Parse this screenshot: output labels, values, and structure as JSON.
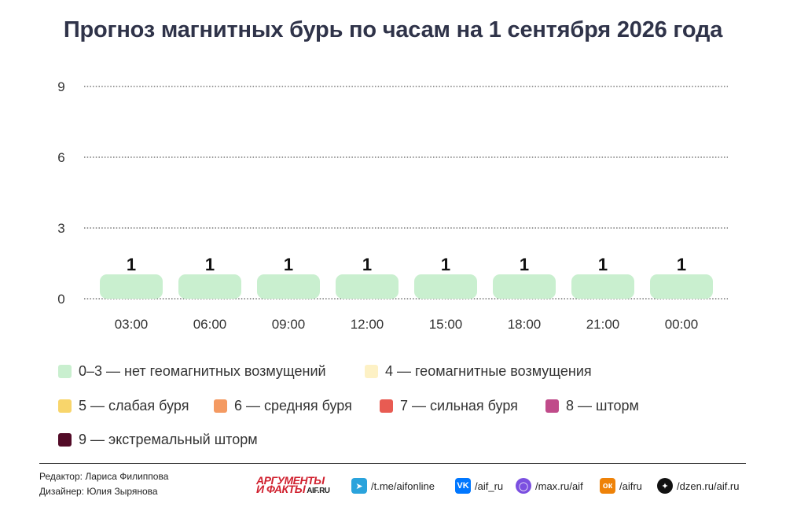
{
  "title": "Прогноз магнитных бурь по часам на 1 сентября 2026 года",
  "chart_data": {
    "type": "bar",
    "categories": [
      "03:00",
      "06:00",
      "09:00",
      "12:00",
      "15:00",
      "18:00",
      "21:00",
      "00:00"
    ],
    "values": [
      1,
      1,
      1,
      1,
      1,
      1,
      1,
      1
    ],
    "value_labels": [
      "1",
      "1",
      "1",
      "1",
      "1",
      "1",
      "1",
      "1"
    ],
    "ylim": [
      0,
      9
    ],
    "yticks": [
      0,
      3,
      6,
      9
    ],
    "ytick_labels": [
      "0",
      "3",
      "6",
      "9"
    ],
    "grid": true,
    "bar_color": "#c9efcf",
    "title": "Прогноз магнитных бурь по часам на 1 сентября 2026 года",
    "xlabel": "",
    "ylabel": ""
  },
  "legend": [
    {
      "label": "0–3 — нет геомагнитных возмущений",
      "color": "#c9efcf"
    },
    {
      "label": "4 — геомагнитные возмущения",
      "color": "#fdf1c5"
    },
    {
      "label": "5 — слабая буря",
      "color": "#f8d56b"
    },
    {
      "label": "6 — средняя буря",
      "color": "#f49a62"
    },
    {
      "label": "7 — сильная буря",
      "color": "#e85b52"
    },
    {
      "label": "8 — шторм",
      "color": "#c04b8a"
    },
    {
      "label": "9 — экстремальный шторм",
      "color": "#520b27"
    }
  ],
  "footer": {
    "editor": "Редактор: Лариса Филиппова",
    "designer": "Дизайнер: Юлия Зырянова",
    "logo_line1": "АРГУМЕНТЫ",
    "logo_line2": "И ФАКТЫ",
    "logo_site": "AIF.RU",
    "socials": [
      {
        "icon": "telegram-icon",
        "text": "/t.me/aifonline",
        "color": "#2aa3dc"
      },
      {
        "icon": "vk-icon",
        "text": "/aif_ru",
        "color": "#0077ff"
      },
      {
        "icon": "max-icon",
        "text": "/max.ru/aif",
        "color": "#7b4fe0"
      },
      {
        "icon": "odnoklassniki-icon",
        "text": "/aifru",
        "color": "#ee8208"
      },
      {
        "icon": "dzen-icon",
        "text": "/dzen.ru/aif.ru",
        "color": "#111111"
      }
    ]
  }
}
